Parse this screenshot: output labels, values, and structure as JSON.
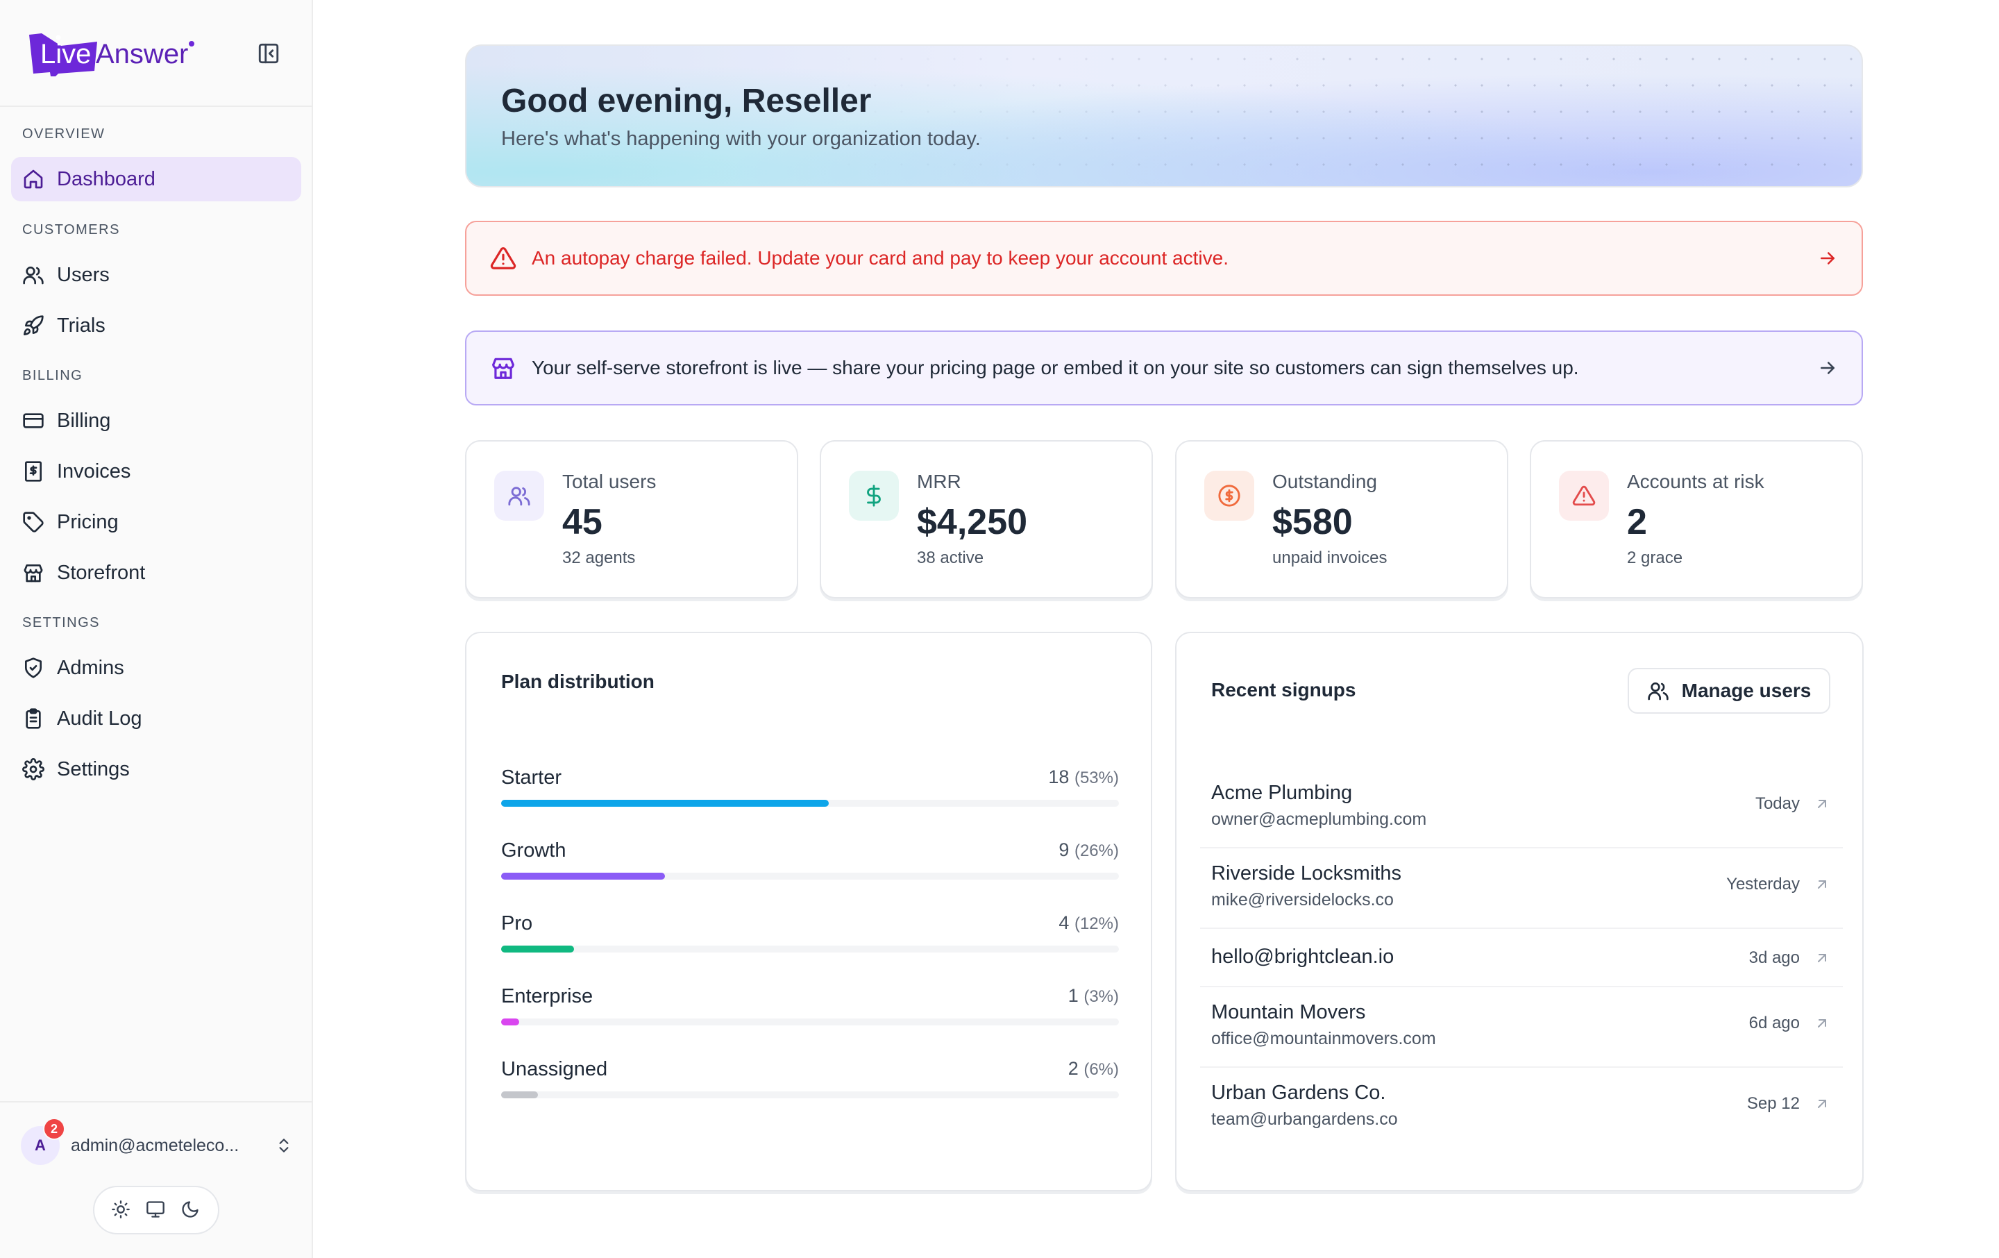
{
  "brand": {
    "name_part1": "Live",
    "name_part2": "Answer"
  },
  "sidebar": {
    "sections": [
      {
        "label": "OVERVIEW"
      },
      {
        "label": "CUSTOMERS"
      },
      {
        "label": "BILLING"
      },
      {
        "label": "SETTINGS"
      }
    ],
    "items": [
      {
        "label": "Dashboard",
        "icon": "home-icon",
        "active": true
      },
      {
        "label": "Users",
        "icon": "users-icon"
      },
      {
        "label": "Trials",
        "icon": "rocket-icon"
      },
      {
        "label": "Billing",
        "icon": "credit-card-icon"
      },
      {
        "label": "Invoices",
        "icon": "receipt-icon"
      },
      {
        "label": "Pricing",
        "icon": "tag-icon"
      },
      {
        "label": "Storefront",
        "icon": "store-icon"
      },
      {
        "label": "Admins",
        "icon": "shield-check-icon"
      },
      {
        "label": "Audit Log",
        "icon": "clipboard-list-icon"
      },
      {
        "label": "Settings",
        "icon": "gear-icon"
      }
    ],
    "user": {
      "initial": "A",
      "badge_count": "2",
      "email": "admin@acmeteleco..."
    }
  },
  "hero": {
    "title": "Good evening, Reseller",
    "subtitle": "Here's what's happening with your organization today."
  },
  "banners": {
    "alert": "An autopay charge failed. Update your card and pay to keep your account active.",
    "info": "Your self-serve storefront is live — share your pricing page or embed it on your site so customers can sign themselves up."
  },
  "stats": [
    {
      "label": "Total users",
      "value": "45",
      "sub": "32 agents"
    },
    {
      "label": "MRR",
      "value": "$4,250",
      "sub": "38 active"
    },
    {
      "label": "Outstanding",
      "value": "$580",
      "sub": "unpaid invoices"
    },
    {
      "label": "Accounts at risk",
      "value": "2",
      "sub": "2 grace"
    }
  ],
  "plan_distribution": {
    "title": "Plan distribution",
    "plans": [
      {
        "name": "Starter",
        "count": "18",
        "pct": "(53%)",
        "fraction": 0.53,
        "color": "#0ea5e9"
      },
      {
        "name": "Growth",
        "count": "9",
        "pct": "(26%)",
        "fraction": 0.265,
        "color": "#8b5cf6"
      },
      {
        "name": "Pro",
        "count": "4",
        "pct": "(12%)",
        "fraction": 0.118,
        "color": "#10b981"
      },
      {
        "name": "Enterprise",
        "count": "1",
        "pct": "(3%)",
        "fraction": 0.029,
        "color": "#d946ef"
      },
      {
        "name": "Unassigned",
        "count": "2",
        "pct": "(6%)",
        "fraction": 0.059,
        "color": "#c4c6cb"
      }
    ]
  },
  "recent_signups": {
    "title": "Recent signups",
    "manage_label": "Manage users",
    "rows": [
      {
        "name": "Acme Plumbing",
        "email": "owner@acmeplumbing.com",
        "date": "Today"
      },
      {
        "name": "Riverside Locksmiths",
        "email": "mike@riversidelocks.co",
        "date": "Yesterday"
      },
      {
        "name": "hello@brightclean.io",
        "email": "",
        "date": "3d ago"
      },
      {
        "name": "Mountain Movers",
        "email": "office@mountainmovers.com",
        "date": "6d ago"
      },
      {
        "name": "Urban Gardens Co.",
        "email": "team@urbangardens.co",
        "date": "Sep 12"
      }
    ]
  }
}
